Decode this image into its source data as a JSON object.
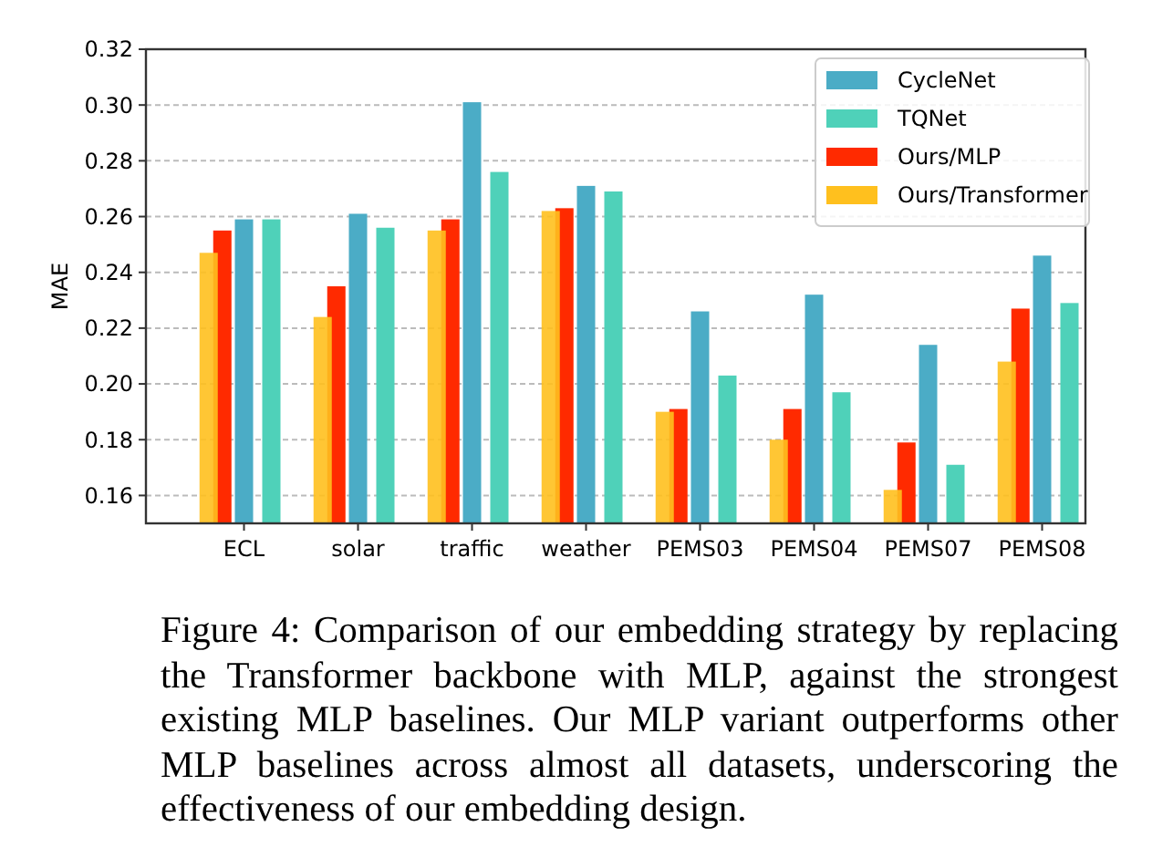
{
  "chart_data": {
    "type": "bar",
    "ylabel": "MAE",
    "categories": [
      "ECL",
      "solar",
      "traffic",
      "weather",
      "PEMS03",
      "PEMS04",
      "PEMS07",
      "PEMS08"
    ],
    "series": [
      {
        "name": "CycleNet",
        "color": "#4bacc6",
        "values": [
          0.259,
          0.261,
          0.301,
          0.271,
          0.226,
          0.232,
          0.214,
          0.246
        ]
      },
      {
        "name": "TQNet",
        "color": "#4fd1b9",
        "values": [
          0.259,
          0.256,
          0.276,
          0.269,
          0.203,
          0.197,
          0.171,
          0.229
        ]
      },
      {
        "name": "Ours/MLP",
        "color": "#ff2a00",
        "values": [
          0.255,
          0.235,
          0.259,
          0.263,
          0.191,
          0.191,
          0.179,
          0.227
        ]
      },
      {
        "name": "Ours/Transformer",
        "color": "#ffc01e",
        "values": [
          0.247,
          0.224,
          0.255,
          0.262,
          0.19,
          0.18,
          0.162,
          0.208
        ]
      }
    ],
    "ylim": [
      0.15,
      0.32
    ],
    "yticks": [
      {
        "value": 0.16,
        "label": "0.16"
      },
      {
        "value": 0.18,
        "label": "0.18"
      },
      {
        "value": 0.2,
        "label": "0.20"
      },
      {
        "value": 0.22,
        "label": "0.22"
      },
      {
        "value": 0.24,
        "label": "0.24"
      },
      {
        "value": 0.26,
        "label": "0.26"
      },
      {
        "value": 0.28,
        "label": "0.28"
      },
      {
        "value": 0.3,
        "label": "0.30"
      },
      {
        "value": 0.32,
        "label": "0.32"
      }
    ],
    "grid": "y",
    "legend": "top right",
    "annotations": [
      "Figure 4: Comparison of our embedding strategy by replacing the Transformer backbone with MLP, against the strongest existing MLP baselines. Our MLP variant outperforms other MLP baselines across almost all datasets, underscoring the effectiveness of our embedding design."
    ]
  }
}
